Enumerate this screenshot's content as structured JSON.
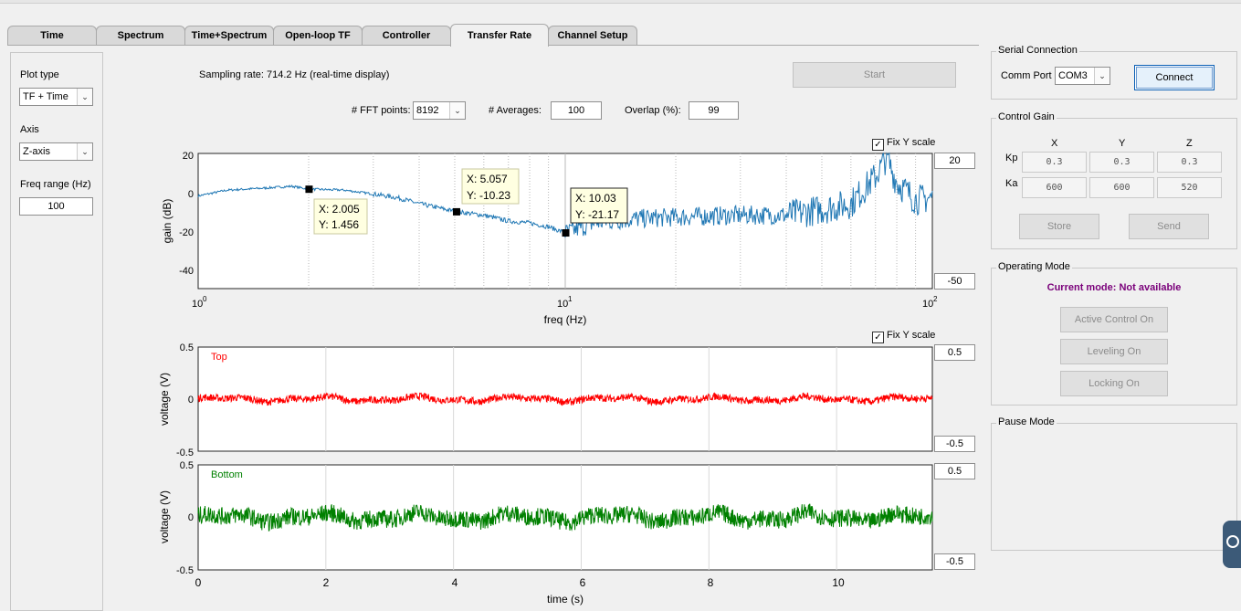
{
  "tabs": [
    {
      "label": "Time",
      "active": false
    },
    {
      "label": "Spectrum",
      "active": false
    },
    {
      "label": "Time+Spectrum",
      "active": false
    },
    {
      "label": "Open-loop TF",
      "active": false
    },
    {
      "label": "Controller",
      "active": false
    },
    {
      "label": "Transfer Rate",
      "active": true
    },
    {
      "label": "Channel Setup",
      "active": false
    }
  ],
  "left_panel": {
    "plot_type_label": "Plot type",
    "plot_type_value": "TF + Time",
    "axis_label": "Axis",
    "axis_value": "Z-axis",
    "freq_range_label": "Freq range (Hz)",
    "freq_range_value": "100"
  },
  "top_controls": {
    "sampling_rate": "Sampling rate: 714.2 Hz (real-time display)",
    "start_label": "Start",
    "fft_points_label": "# FFT points:",
    "fft_points_value": "8192",
    "averages_label": "# Averages:",
    "averages_value": "100",
    "overlap_label": "Overlap (%):",
    "overlap_value": "99"
  },
  "tf_plot": {
    "fix_y_label": "Fix Y scale",
    "ymax_value": "20",
    "ymin_value": "-50",
    "xlabel": "freq (Hz)",
    "ylabel": "gain (dB)",
    "yticks": [
      "20",
      "0",
      "-20",
      "-40"
    ],
    "xtick_bases": [
      "10",
      "10",
      "10"
    ],
    "xtick_exps": [
      "0",
      "1",
      "2"
    ],
    "datatips": [
      {
        "x": "X: 2.005",
        "y": "Y: 1.456"
      },
      {
        "x": "X: 5.057",
        "y": "Y: -10.23"
      },
      {
        "x": "X: 10.03",
        "y": "Y: -21.17"
      }
    ]
  },
  "time_plot": {
    "fix_y_label": "Fix Y scale",
    "top_max": "0.5",
    "top_min": "-0.5",
    "bottom_max": "0.5",
    "bottom_min": "-0.5",
    "ylabel": "voltage (V)",
    "xlabel": "time (s)",
    "top_series": "Top",
    "bottom_series": "Bottom",
    "top_yticks": [
      "0.5",
      "0",
      "-0.5"
    ],
    "bottom_yticks": [
      "0.5",
      "0",
      "-0.5"
    ],
    "xticks": [
      "0",
      "2",
      "4",
      "6",
      "8",
      "10"
    ]
  },
  "serial": {
    "title": "Serial Connection",
    "comm_port_label": "Comm Port",
    "comm_port_value": "COM3",
    "connect_label": "Connect"
  },
  "control_gain": {
    "title": "Control Gain",
    "col_x": "X",
    "col_y": "Y",
    "col_z": "Z",
    "kp_label": "Kp",
    "ka_label": "Ka",
    "kp": [
      "0.3",
      "0.3",
      "0.3"
    ],
    "ka": [
      "600",
      "600",
      "520"
    ],
    "store_label": "Store",
    "send_label": "Send"
  },
  "operating_mode": {
    "title": "Operating Mode",
    "current_mode": "Current mode: Not available",
    "active_control": "Active Control On",
    "leveling": "Leveling On",
    "locking": "Locking On"
  },
  "pause_mode": {
    "title": "Pause Mode"
  },
  "colors": {
    "tf_line": "#1f77b4",
    "top_signal": "#ff0000",
    "bottom_signal": "#008000",
    "mode_text": "#7a007a",
    "datatip_bg": "#ffffe1"
  },
  "chart_data": [
    {
      "type": "line",
      "xlabel": "freq (Hz)",
      "ylabel": "gain (dB)",
      "x_scale": "log",
      "xlim": [
        1,
        100
      ],
      "ylim": [
        -50,
        20
      ],
      "grid": "x-minor",
      "datatips": [
        [
          2.005,
          1.456
        ],
        [
          5.057,
          -10.23
        ],
        [
          10.03,
          -21.17
        ]
      ],
      "x": [
        1,
        1.2,
        1.5,
        1.8,
        2.005,
        2.5,
        3,
        3.5,
        4,
        5.057,
        6,
        7,
        8,
        9,
        10.03,
        12,
        15,
        20,
        30,
        40,
        50,
        60,
        70,
        75,
        80,
        90,
        100
      ],
      "y": [
        -2,
        1,
        2,
        3,
        1.5,
        1,
        -1,
        -3,
        -6,
        -10.2,
        -12,
        -15,
        -16,
        -18,
        -21.2,
        -16,
        -14,
        -13,
        -12,
        -12,
        -9,
        -6,
        8,
        18,
        5,
        -4,
        -3
      ]
    },
    {
      "type": "line",
      "series": [
        {
          "name": "Top"
        }
      ],
      "xlabel": "time (s)",
      "ylabel": "voltage (V)",
      "xlim": [
        0,
        11.5
      ],
      "ylim": [
        -0.5,
        0.5
      ],
      "grid": "x",
      "approx_amplitude": 0.05
    },
    {
      "type": "line",
      "series": [
        {
          "name": "Bottom"
        }
      ],
      "xlabel": "time (s)",
      "ylabel": "voltage (V)",
      "xlim": [
        0,
        11.5
      ],
      "ylim": [
        -0.5,
        0.5
      ],
      "grid": "x",
      "approx_amplitude": 0.12
    }
  ]
}
